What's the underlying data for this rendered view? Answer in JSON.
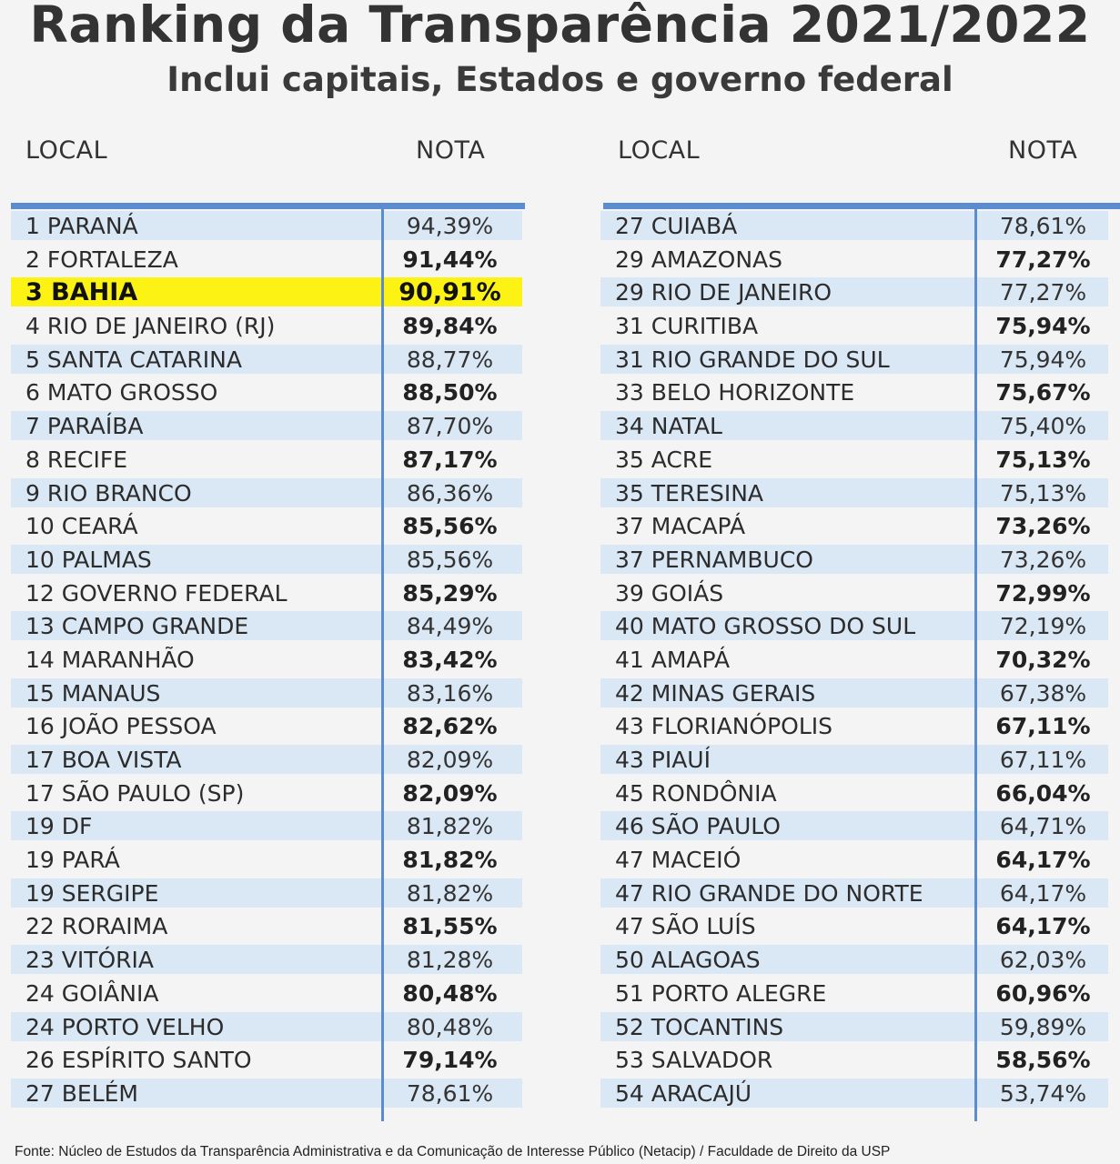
{
  "title": "Ranking da Transparência 2021/2022",
  "subtitle": "Inclui capitais, Estados e governo federal",
  "headers": {
    "local": "LOCAL",
    "nota": "NOTA"
  },
  "colors": {
    "accent": "#5b8ccf",
    "stripe": "#dae7f4",
    "highlight": "#fcf213"
  },
  "left_rows": [
    {
      "local": "1 PARANÁ",
      "nota": "94,39%",
      "bold": false,
      "highlight": false
    },
    {
      "local": "2 FORTALEZA",
      "nota": "91,44%",
      "bold": true,
      "highlight": false
    },
    {
      "local": "3 BAHIA",
      "nota": "90,91%",
      "bold": true,
      "highlight": true
    },
    {
      "local": "4 RIO DE JANEIRO (RJ)",
      "nota": "89,84%",
      "bold": true,
      "highlight": false
    },
    {
      "local": "5 SANTA CATARINA",
      "nota": "88,77%",
      "bold": false,
      "highlight": false
    },
    {
      "local": "6 MATO GROSSO",
      "nota": "88,50%",
      "bold": true,
      "highlight": false
    },
    {
      "local": "7 PARAÍBA",
      "nota": "87,70%",
      "bold": false,
      "highlight": false
    },
    {
      "local": "8 RECIFE",
      "nota": "87,17%",
      "bold": true,
      "highlight": false
    },
    {
      "local": "9 RIO BRANCO",
      "nota": "86,36%",
      "bold": false,
      "highlight": false
    },
    {
      "local": "10 CEARÁ",
      "nota": "85,56%",
      "bold": true,
      "highlight": false
    },
    {
      "local": "10 PALMAS",
      "nota": "85,56%",
      "bold": false,
      "highlight": false
    },
    {
      "local": "12 GOVERNO FEDERAL",
      "nota": "85,29%",
      "bold": true,
      "highlight": false
    },
    {
      "local": "13 CAMPO GRANDE",
      "nota": "84,49%",
      "bold": false,
      "highlight": false
    },
    {
      "local": "14 MARANHÃO",
      "nota": "83,42%",
      "bold": true,
      "highlight": false
    },
    {
      "local": "15 MANAUS",
      "nota": "83,16%",
      "bold": false,
      "highlight": false
    },
    {
      "local": "16 JOÃO PESSOA",
      "nota": "82,62%",
      "bold": true,
      "highlight": false
    },
    {
      "local": "17 BOA VISTA",
      "nota": "82,09%",
      "bold": false,
      "highlight": false
    },
    {
      "local": "17 SÃO PAULO (SP)",
      "nota": "82,09%",
      "bold": true,
      "highlight": false
    },
    {
      "local": "19 DF",
      "nota": "81,82%",
      "bold": false,
      "highlight": false
    },
    {
      "local": "19 PARÁ",
      "nota": "81,82%",
      "bold": true,
      "highlight": false
    },
    {
      "local": "19 SERGIPE",
      "nota": "81,82%",
      "bold": false,
      "highlight": false
    },
    {
      "local": "22 RORAIMA",
      "nota": "81,55%",
      "bold": true,
      "highlight": false
    },
    {
      "local": "23 VITÓRIA",
      "nota": "81,28%",
      "bold": false,
      "highlight": false
    },
    {
      "local": "24 GOIÂNIA",
      "nota": "80,48%",
      "bold": true,
      "highlight": false
    },
    {
      "local": "24 PORTO VELHO",
      "nota": "80,48%",
      "bold": false,
      "highlight": false
    },
    {
      "local": "26 ESPÍRITO SANTO",
      "nota": "79,14%",
      "bold": true,
      "highlight": false
    },
    {
      "local": "27 BELÉM",
      "nota": "78,61%",
      "bold": false,
      "highlight": false
    }
  ],
  "right_rows": [
    {
      "local": "27 CUIABÁ",
      "nota": "78,61%",
      "bold": false,
      "highlight": false
    },
    {
      "local": "29 AMAZONAS",
      "nota": "77,27%",
      "bold": true,
      "highlight": false
    },
    {
      "local": "29 RIO DE JANEIRO",
      "nota": "77,27%",
      "bold": false,
      "highlight": false
    },
    {
      "local": "31 CURITIBA",
      "nota": "75,94%",
      "bold": true,
      "highlight": false
    },
    {
      "local": "31 RIO GRANDE DO SUL",
      "nota": "75,94%",
      "bold": false,
      "highlight": false
    },
    {
      "local": "33 BELO HORIZONTE",
      "nota": "75,67%",
      "bold": true,
      "highlight": false
    },
    {
      "local": "34 NATAL",
      "nota": "75,40%",
      "bold": false,
      "highlight": false
    },
    {
      "local": "35 ACRE",
      "nota": "75,13%",
      "bold": true,
      "highlight": false
    },
    {
      "local": "35 TERESINA",
      "nota": "75,13%",
      "bold": false,
      "highlight": false
    },
    {
      "local": "37 MACAPÁ",
      "nota": "73,26%",
      "bold": true,
      "highlight": false
    },
    {
      "local": "37 PERNAMBUCO",
      "nota": "73,26%",
      "bold": false,
      "highlight": false
    },
    {
      "local": "39 GOIÁS",
      "nota": "72,99%",
      "bold": true,
      "highlight": false
    },
    {
      "local": "40 MATO GROSSO DO SUL",
      "nota": "72,19%",
      "bold": false,
      "highlight": false
    },
    {
      "local": "41 AMAPÁ",
      "nota": "70,32%",
      "bold": true,
      "highlight": false
    },
    {
      "local": "42 MINAS GERAIS",
      "nota": "67,38%",
      "bold": false,
      "highlight": false
    },
    {
      "local": "43 FLORIANÓPOLIS",
      "nota": "67,11%",
      "bold": true,
      "highlight": false
    },
    {
      "local": "43 PIAUÍ",
      "nota": "67,11%",
      "bold": false,
      "highlight": false
    },
    {
      "local": "45 RONDÔNIA",
      "nota": "66,04%",
      "bold": true,
      "highlight": false
    },
    {
      "local": "46 SÃO PAULO",
      "nota": "64,71%",
      "bold": false,
      "highlight": false
    },
    {
      "local": "47 MACEIÓ",
      "nota": "64,17%",
      "bold": true,
      "highlight": false
    },
    {
      "local": "47 RIO GRANDE DO NORTE",
      "nota": "64,17%",
      "bold": false,
      "highlight": false
    },
    {
      "local": "47 SÃO LUÍS",
      "nota": "64,17%",
      "bold": true,
      "highlight": false
    },
    {
      "local": "50 ALAGOAS",
      "nota": "62,03%",
      "bold": false,
      "highlight": false
    },
    {
      "local": "51 PORTO ALEGRE",
      "nota": "60,96%",
      "bold": true,
      "highlight": false
    },
    {
      "local": "52 TOCANTINS",
      "nota": "59,89%",
      "bold": false,
      "highlight": false
    },
    {
      "local": "53 SALVADOR",
      "nota": "58,56%",
      "bold": true,
      "highlight": false
    },
    {
      "local": "54 ARACAJÚ",
      "nota": "53,74%",
      "bold": false,
      "highlight": false
    }
  ],
  "footer": "Fonte: Núcleo de Estudos da Transparência Administrativa e da Comunicação de Interesse Público (Netacip) / Faculdade de Direito da USP"
}
